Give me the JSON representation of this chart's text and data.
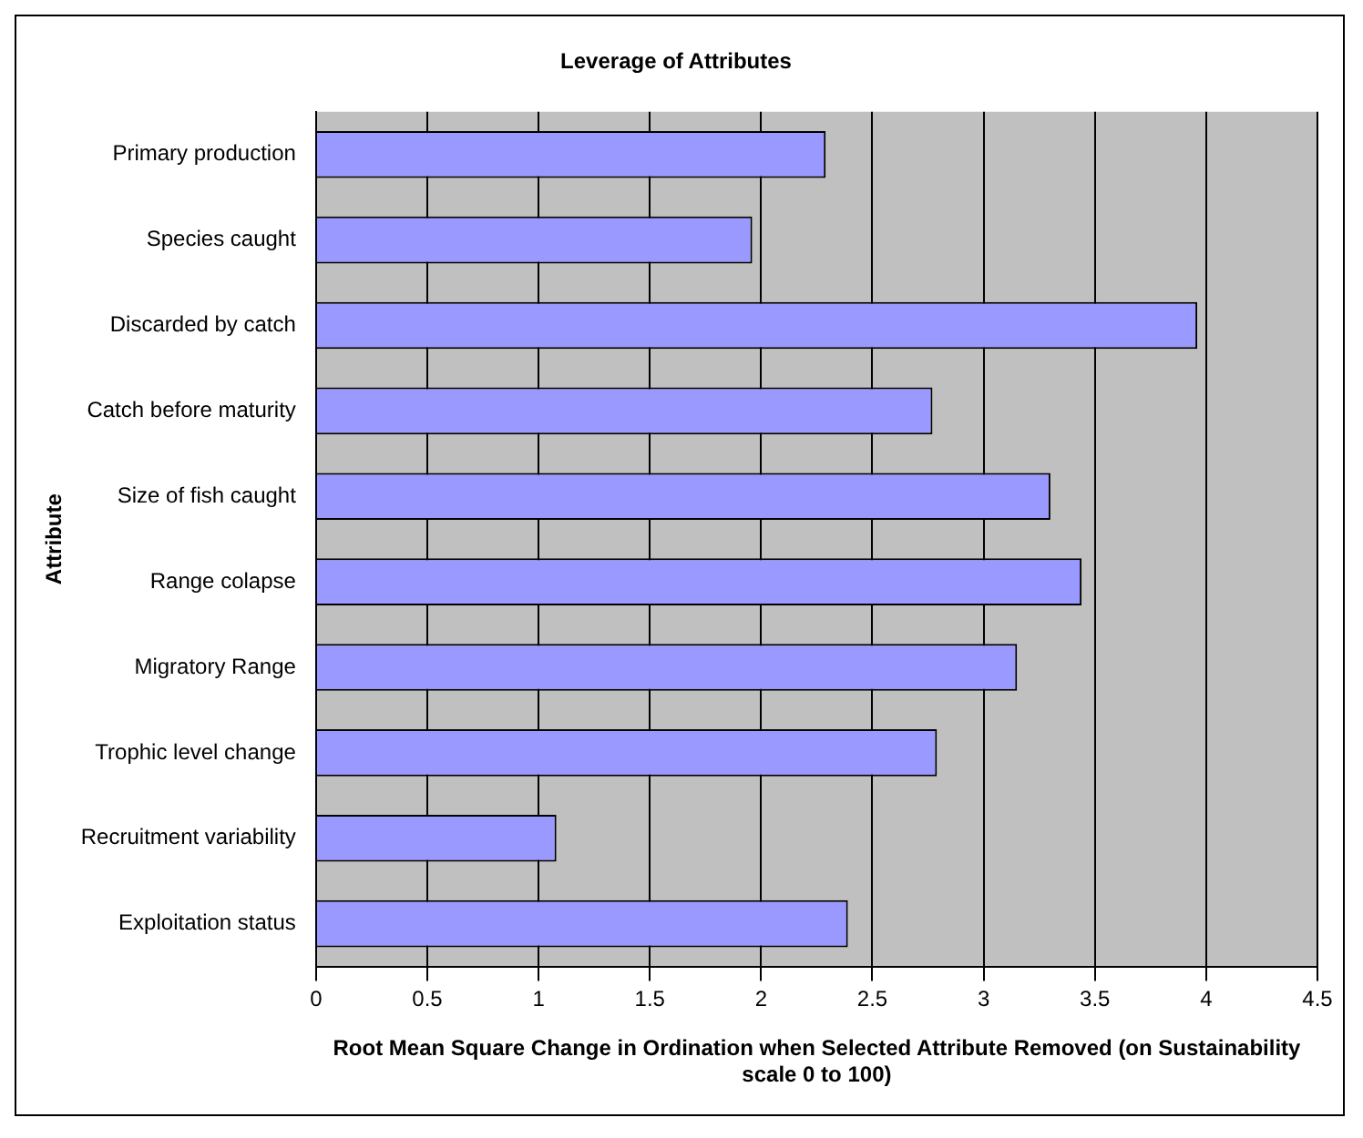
{
  "chart_data": {
    "type": "bar",
    "orientation": "horizontal",
    "title": "Leverage of Attributes",
    "xlabel": "Root Mean Square Change in Ordination when Selected Attribute Removed (on Sustainability scale 0 to 100)",
    "ylabel": "Attribute",
    "categories": [
      "Primary production",
      "Species caught",
      "Discarded by catch",
      "Catch before maturity",
      "Size of fish caught",
      "Range colapse",
      "Migratory Range",
      "Trophic level change",
      "Recruitment variability",
      "Exploitation status"
    ],
    "values": [
      2.29,
      1.96,
      3.96,
      2.77,
      3.3,
      3.44,
      3.15,
      2.79,
      1.08,
      2.39
    ],
    "color": "#9999ff",
    "xlim": [
      0,
      4.5
    ],
    "xticks": [
      0,
      0.5,
      1,
      1.5,
      2,
      2.5,
      3,
      3.5,
      4,
      4.5
    ],
    "grid": "x",
    "legend": false
  }
}
